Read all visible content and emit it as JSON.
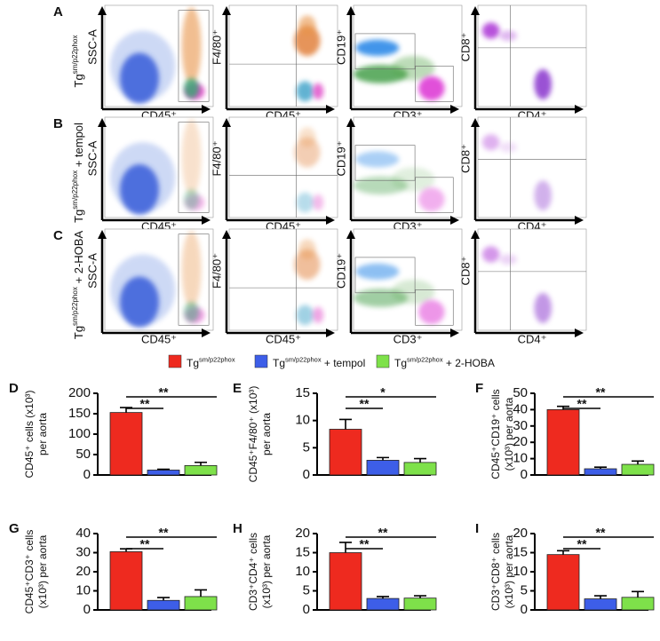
{
  "flow": {
    "rows": [
      {
        "letter": "A",
        "label": {
          "base": "Tg",
          "sup": "sm/p22phox"
        }
      },
      {
        "letter": "B",
        "label": {
          "base": "Tg",
          "sup": "sm/p22phox",
          "suffix": " + tempol"
        }
      },
      {
        "letter": "C",
        "label": {
          "base": "Tg",
          "sup": "sm/p22phox",
          "suffix": " + 2-HOBA"
        }
      }
    ],
    "x_labels": [
      "CD45⁺",
      "CD45⁺",
      "CD3⁺",
      "CD4⁺"
    ],
    "y_labels": [
      "SSC-A",
      "F4/80⁺",
      "CD19⁺",
      "CD8⁺"
    ]
  },
  "legend": [
    {
      "name": {
        "base": "Tg",
        "sup": "sm/p22phox"
      },
      "color": "#ee2a1f"
    },
    {
      "name": {
        "base": "Tg",
        "sup": "sm/p22phox",
        "suffix": " + tempol"
      },
      "color": "#3d5ee8"
    },
    {
      "name": {
        "base": "Tg",
        "sup": "sm/p22phox",
        "suffix": " + 2-HOBA"
      },
      "color": "#7ee14a"
    }
  ],
  "chart_data": [
    {
      "type": "bar",
      "letter": "D",
      "y_label": [
        "CD45⁺ cells (x10³)",
        "per aorta"
      ],
      "values": [
        153,
        12,
        23
      ],
      "errors": [
        12,
        2,
        8
      ],
      "ylim": [
        0,
        200
      ],
      "yticks": [
        0,
        50,
        100,
        150,
        200
      ],
      "significance": [
        "**",
        "**"
      ]
    },
    {
      "type": "bar",
      "letter": "E",
      "y_label": [
        "CD45⁺F4/80⁺ (x10³)",
        "per aorta"
      ],
      "values": [
        8.4,
        2.7,
        2.3
      ],
      "errors": [
        1.8,
        0.5,
        0.7
      ],
      "ylim": [
        0,
        15
      ],
      "yticks": [
        0,
        5,
        10,
        15
      ],
      "significance": [
        "**",
        "*"
      ]
    },
    {
      "type": "bar",
      "letter": "F",
      "y_label": [
        "CD45⁺CD19⁺ cells",
        "(x10³) per aorta"
      ],
      "values": [
        40,
        3.8,
        6.5
      ],
      "errors": [
        2,
        1,
        2
      ],
      "ylim": [
        0,
        50
      ],
      "yticks": [
        0,
        10,
        20,
        30,
        40,
        50
      ],
      "significance": [
        "**",
        "**"
      ]
    },
    {
      "type": "bar",
      "letter": "G",
      "y_label": [
        "CD45⁺CD3⁺ cells",
        "(x10³) per aorta"
      ],
      "values": [
        30.5,
        5,
        7
      ],
      "errors": [
        1.5,
        1.5,
        3.5
      ],
      "ylim": [
        0,
        40
      ],
      "yticks": [
        0,
        10,
        20,
        30,
        40
      ],
      "significance": [
        "**",
        "**"
      ]
    },
    {
      "type": "bar",
      "letter": "H",
      "y_label": [
        "CD3⁺CD4⁺ cells",
        "(x10³) per aorta"
      ],
      "values": [
        15,
        3,
        3.1
      ],
      "errors": [
        2.7,
        0.5,
        0.6
      ],
      "ylim": [
        0,
        20
      ],
      "yticks": [
        0,
        5,
        10,
        15,
        20
      ],
      "significance": [
        "**",
        "**"
      ]
    },
    {
      "type": "bar",
      "letter": "I",
      "y_label": [
        "CD3⁺CD8⁺ cells",
        "(x10³) per aorta"
      ],
      "values": [
        14.5,
        2.9,
        3.3
      ],
      "errors": [
        1,
        0.8,
        1.5
      ],
      "ylim": [
        0,
        20
      ],
      "yticks": [
        0,
        5,
        10,
        15,
        20
      ],
      "significance": [
        "**",
        "**"
      ]
    }
  ]
}
